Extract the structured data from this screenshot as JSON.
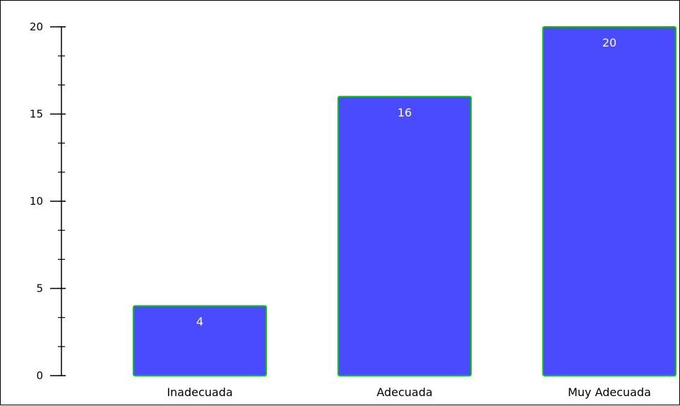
{
  "chart_data": {
    "type": "bar",
    "title": "",
    "xlabel": "",
    "ylabel": "",
    "categories": [
      "Inadecuada",
      "Adecuada",
      "Muy Adecuada"
    ],
    "values": [
      4,
      16,
      20
    ],
    "ylim": [
      0,
      20
    ],
    "major_ticks": [
      0,
      5,
      10,
      15,
      20
    ],
    "tick_labels": [
      "0",
      "5",
      "10",
      "15",
      "20"
    ],
    "minor_tick_step": 1.67,
    "data_labels": [
      "4",
      "16",
      "20"
    ],
    "grid": false,
    "legend": "none",
    "colors": {
      "bar_fill": "#4a4aff",
      "bar_stroke": "#00cc00",
      "value_text": "#ffffff",
      "axis": "#000000",
      "frame": "#000000"
    }
  }
}
